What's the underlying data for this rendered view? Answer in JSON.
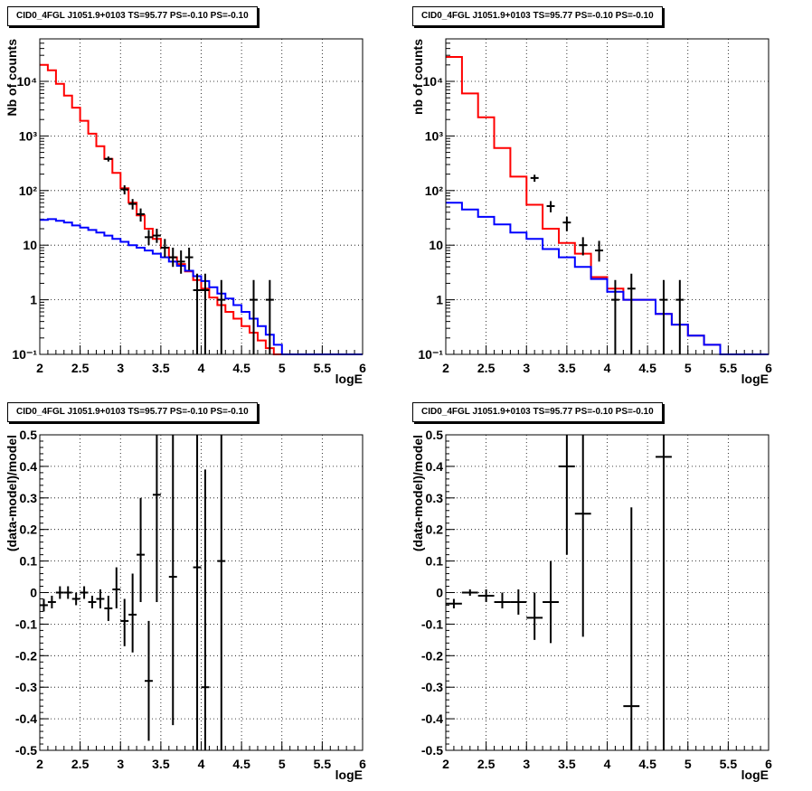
{
  "chart_data": [
    {
      "type": "line",
      "title": "CID0_4FGL J1051.9+0103 TS=95.77 PS=-0.10 PS=-0.10",
      "xlabel": "logE",
      "ylabel": "Nb of counts",
      "xlim": [
        2,
        6
      ],
      "ylim": [
        0.1,
        60000
      ],
      "log_y": true,
      "grid": true,
      "x_ticks": [
        2,
        2.5,
        3,
        3.5,
        4,
        4.5,
        5,
        5.5,
        6
      ],
      "x_tick_labels": [
        "2",
        "2.5",
        "3",
        "3.5",
        "4",
        "4.5",
        "5",
        "5.5",
        "6"
      ],
      "y_ticks": [
        0.1,
        1,
        10,
        100,
        1000,
        10000
      ],
      "y_tick_labels": [
        "10⁻¹",
        "1",
        "10",
        "10²",
        "10³",
        "10⁴"
      ],
      "bin_edges": [
        2.0,
        2.1,
        2.2,
        2.3,
        2.4,
        2.5,
        2.6,
        2.7,
        2.8,
        2.9,
        3.0,
        3.1,
        3.2,
        3.3,
        3.4,
        3.5,
        3.6,
        3.7,
        3.8,
        3.9,
        4.0,
        4.1,
        4.2,
        4.3,
        4.4,
        4.5,
        4.6,
        4.7,
        4.8,
        4.9,
        5.0,
        5.1,
        5.2,
        5.3,
        5.4,
        5.5,
        5.6,
        5.7,
        5.8,
        5.9,
        6.0
      ],
      "series": [
        {
          "color": "#ff0000",
          "style": "step",
          "values": [
            20000,
            16000,
            9000,
            5500,
            3300,
            1900,
            1100,
            650,
            380,
            210,
            110,
            60,
            35,
            20,
            13,
            9,
            6,
            4.5,
            3.3,
            2.3,
            1.6,
            1.1,
            0.8,
            0.6,
            0.45,
            0.33,
            0.25,
            0.18,
            0.13,
            0.1,
            0.1,
            0.1,
            0.1,
            0.1,
            0.1,
            0.1,
            0.1,
            0.1,
            0.1,
            0.1
          ]
        },
        {
          "color": "#0000ff",
          "style": "step",
          "values": [
            29,
            30,
            28,
            26,
            23,
            21,
            19,
            17,
            15,
            13,
            11.5,
            10,
            9,
            8,
            7,
            6,
            5,
            4.2,
            3.4,
            2.7,
            2.2,
            1.7,
            1.3,
            1.05,
            0.8,
            0.6,
            0.45,
            0.33,
            0.23,
            0.15,
            0.1,
            0.1,
            0.1,
            0.1,
            0.1,
            0.1,
            0.1,
            0.1,
            0.1,
            0.1
          ]
        }
      ],
      "points": [
        {
          "x": 2.85,
          "y": 380,
          "ylo": 340,
          "yhi": 420
        },
        {
          "x": 3.05,
          "y": 105,
          "ylo": 85,
          "yhi": 125
        },
        {
          "x": 3.15,
          "y": 57,
          "ylo": 45,
          "yhi": 70
        },
        {
          "x": 3.25,
          "y": 37,
          "ylo": 27,
          "yhi": 47
        },
        {
          "x": 3.35,
          "y": 14,
          "ylo": 10,
          "yhi": 19
        },
        {
          "x": 3.45,
          "y": 15,
          "ylo": 11,
          "yhi": 20
        },
        {
          "x": 3.55,
          "y": 9,
          "ylo": 6,
          "yhi": 13
        },
        {
          "x": 3.65,
          "y": 6,
          "ylo": 4,
          "yhi": 9
        },
        {
          "x": 3.75,
          "y": 5,
          "ylo": 3,
          "yhi": 8
        },
        {
          "x": 3.85,
          "y": 6,
          "ylo": 3.5,
          "yhi": 9
        },
        {
          "x": 3.95,
          "y": 1.5,
          "ylo": 0.1,
          "yhi": 3
        },
        {
          "x": 4.05,
          "y": 1.5,
          "ylo": 0.1,
          "yhi": 3
        },
        {
          "x": 4.25,
          "y": 1,
          "ylo": 0.1,
          "yhi": 2.3
        },
        {
          "x": 4.65,
          "y": 1,
          "ylo": 0.1,
          "yhi": 2.3
        },
        {
          "x": 4.85,
          "y": 1,
          "ylo": 0.1,
          "yhi": 2.3
        }
      ]
    },
    {
      "type": "line",
      "title": "CID0_4FGL J1051.9+0103 TS=95.77 PS=-0.10 PS=-0.10",
      "xlabel": "logE",
      "ylabel": "nb of counts",
      "xlim": [
        2,
        6
      ],
      "ylim": [
        0.1,
        60000
      ],
      "log_y": true,
      "grid": true,
      "x_ticks": [
        2,
        2.5,
        3,
        3.5,
        4,
        4.5,
        5,
        5.5,
        6
      ],
      "x_tick_labels": [
        "2",
        "2.5",
        "3",
        "3.5",
        "4",
        "4.5",
        "5",
        "5.5",
        "6"
      ],
      "y_ticks": [
        0.1,
        1,
        10,
        100,
        1000,
        10000
      ],
      "y_tick_labels": [
        "10⁻¹",
        "1",
        "10",
        "10²",
        "10³",
        "10⁴"
      ],
      "bin_edges": [
        2.0,
        2.2,
        2.4,
        2.6,
        2.8,
        3.0,
        3.2,
        3.4,
        3.6,
        3.8,
        4.0,
        4.2,
        4.4,
        4.6,
        4.8,
        5.0,
        5.2,
        5.4,
        5.6,
        5.8,
        6.0
      ],
      "series": [
        {
          "color": "#ff0000",
          "style": "step",
          "values": [
            28000,
            6000,
            2200,
            600,
            180,
            55,
            20,
            11,
            7,
            2.6,
            1.6,
            1.0,
            1.0,
            0.55,
            0.35,
            0.22,
            0.15,
            0.1,
            0.1,
            0.1
          ]
        },
        {
          "color": "#0000ff",
          "style": "step",
          "values": [
            60,
            45,
            33,
            24,
            17,
            13,
            8.5,
            6,
            4,
            2.4,
            1.4,
            1.0,
            1.0,
            0.55,
            0.35,
            0.22,
            0.15,
            0.1,
            0.1,
            0.1
          ]
        }
      ],
      "points": [
        {
          "x": 3.1,
          "y": 170,
          "ylo": 145,
          "yhi": 195
        },
        {
          "x": 3.3,
          "y": 52,
          "ylo": 40,
          "yhi": 64
        },
        {
          "x": 3.5,
          "y": 26,
          "ylo": 18,
          "yhi": 33
        },
        {
          "x": 3.7,
          "y": 10,
          "ylo": 6.5,
          "yhi": 14
        },
        {
          "x": 3.9,
          "y": 8,
          "ylo": 5,
          "yhi": 12
        },
        {
          "x": 4.1,
          "y": 1,
          "ylo": 0.1,
          "yhi": 2.3
        },
        {
          "x": 4.3,
          "y": 1.6,
          "ylo": 0.1,
          "yhi": 3
        },
        {
          "x": 4.7,
          "y": 1,
          "ylo": 0.1,
          "yhi": 2.3
        },
        {
          "x": 4.9,
          "y": 1,
          "ylo": 0.1,
          "yhi": 2.3
        }
      ]
    },
    {
      "type": "scatter",
      "title": "CID0_4FGL J1051.9+0103 TS=95.77 PS=-0.10 PS=-0.10",
      "xlabel": "logE",
      "ylabel": "(data-model)/model",
      "xlim": [
        2,
        6
      ],
      "ylim": [
        -0.5,
        0.5
      ],
      "grid": true,
      "x_ticks": [
        2,
        2.5,
        3,
        3.5,
        4,
        4.5,
        5,
        5.5,
        6
      ],
      "x_tick_labels": [
        "2",
        "2.5",
        "3",
        "3.5",
        "4",
        "4.5",
        "5",
        "5.5",
        "6"
      ],
      "y_ticks": [
        -0.5,
        -0.4,
        -0.3,
        -0.2,
        -0.1,
        0,
        0.1,
        0.2,
        0.3,
        0.4,
        0.5
      ],
      "y_tick_labels": [
        "-0.5",
        "-0.4",
        "-0.3",
        "-0.2",
        "-0.1",
        "0",
        "0.1",
        "0.2",
        "0.3",
        "0.4",
        "0.5"
      ],
      "points": [
        {
          "x": 2.05,
          "y": -0.04,
          "ylo": -0.06,
          "yhi": -0.02,
          "xerr": 0.05
        },
        {
          "x": 2.15,
          "y": -0.03,
          "ylo": -0.05,
          "yhi": -0.01,
          "xerr": 0.05
        },
        {
          "x": 2.25,
          "y": 0.0,
          "ylo": -0.02,
          "yhi": 0.02,
          "xerr": 0.05
        },
        {
          "x": 2.35,
          "y": 0.0,
          "ylo": -0.02,
          "yhi": 0.02,
          "xerr": 0.05
        },
        {
          "x": 2.45,
          "y": -0.02,
          "ylo": -0.04,
          "yhi": 0.0,
          "xerr": 0.05
        },
        {
          "x": 2.55,
          "y": 0.0,
          "ylo": -0.02,
          "yhi": 0.02,
          "xerr": 0.05
        },
        {
          "x": 2.65,
          "y": -0.03,
          "ylo": -0.05,
          "yhi": -0.01,
          "xerr": 0.05
        },
        {
          "x": 2.75,
          "y": -0.02,
          "ylo": -0.05,
          "yhi": 0.01,
          "xerr": 0.05
        },
        {
          "x": 2.85,
          "y": -0.05,
          "ylo": -0.09,
          "yhi": -0.01,
          "xerr": 0.05
        },
        {
          "x": 2.95,
          "y": 0.01,
          "ylo": -0.05,
          "yhi": 0.08,
          "xerr": 0.05
        },
        {
          "x": 3.05,
          "y": -0.09,
          "ylo": -0.17,
          "yhi": -0.02,
          "xerr": 0.05
        },
        {
          "x": 3.15,
          "y": -0.07,
          "ylo": -0.19,
          "yhi": 0.06,
          "xerr": 0.05
        },
        {
          "x": 3.25,
          "y": 0.12,
          "ylo": -0.03,
          "yhi": 0.3,
          "xerr": 0.05
        },
        {
          "x": 3.35,
          "y": -0.28,
          "ylo": -0.47,
          "yhi": -0.09,
          "xerr": 0.05
        },
        {
          "x": 3.45,
          "y": 0.31,
          "ylo": -0.03,
          "yhi": 0.5,
          "xerr": 0.05
        },
        {
          "x": 3.65,
          "y": 0.05,
          "ylo": -0.42,
          "yhi": 0.5,
          "xerr": 0.05
        },
        {
          "x": 3.95,
          "y": 0.08,
          "ylo": -0.5,
          "yhi": 0.5,
          "xerr": 0.05
        },
        {
          "x": 4.05,
          "y": -0.3,
          "ylo": -0.5,
          "yhi": 0.39,
          "xerr": 0.05
        },
        {
          "x": 4.25,
          "y": 0.1,
          "ylo": -0.5,
          "yhi": 0.5,
          "xerr": 0.05
        }
      ]
    },
    {
      "type": "scatter",
      "title": "CID0_4FGL J1051.9+0103 TS=95.77 PS=-0.10 PS=-0.10",
      "xlabel": "logE",
      "ylabel": "(data-model)/model",
      "xlim": [
        2,
        6
      ],
      "ylim": [
        -0.5,
        0.5
      ],
      "grid": true,
      "x_ticks": [
        2,
        2.5,
        3,
        3.5,
        4,
        4.5,
        5,
        5.5,
        6
      ],
      "x_tick_labels": [
        "2",
        "2.5",
        "3",
        "3.5",
        "4",
        "4.5",
        "5",
        "5.5",
        "6"
      ],
      "y_ticks": [
        -0.5,
        -0.4,
        -0.3,
        -0.2,
        -0.1,
        0,
        0.1,
        0.2,
        0.3,
        0.4,
        0.5
      ],
      "y_tick_labels": [
        "-0.5",
        "-0.4",
        "-0.3",
        "-0.2",
        "-0.1",
        "0",
        "0.1",
        "0.2",
        "0.3",
        "0.4",
        "0.5"
      ],
      "points": [
        {
          "x": 2.1,
          "y": -0.035,
          "ylo": -0.05,
          "yhi": -0.02,
          "xerr": 0.1
        },
        {
          "x": 2.3,
          "y": 0.0,
          "ylo": -0.01,
          "yhi": 0.01,
          "xerr": 0.1
        },
        {
          "x": 2.5,
          "y": -0.01,
          "ylo": -0.03,
          "yhi": 0.01,
          "xerr": 0.1
        },
        {
          "x": 2.7,
          "y": -0.03,
          "ylo": -0.05,
          "yhi": 0.0,
          "xerr": 0.1
        },
        {
          "x": 2.9,
          "y": -0.03,
          "ylo": -0.07,
          "yhi": 0.01,
          "xerr": 0.1
        },
        {
          "x": 3.1,
          "y": -0.08,
          "ylo": -0.15,
          "yhi": -0.0,
          "xerr": 0.1
        },
        {
          "x": 3.3,
          "y": -0.03,
          "ylo": -0.16,
          "yhi": 0.1,
          "xerr": 0.1
        },
        {
          "x": 3.5,
          "y": 0.4,
          "ylo": 0.12,
          "yhi": 0.5,
          "xerr": 0.1
        },
        {
          "x": 3.7,
          "y": 0.25,
          "ylo": -0.14,
          "yhi": 0.5,
          "xerr": 0.1
        },
        {
          "x": 4.3,
          "y": -0.36,
          "ylo": -0.5,
          "yhi": 0.27,
          "xerr": 0.1
        },
        {
          "x": 4.7,
          "y": 0.43,
          "ylo": -0.5,
          "yhi": 0.5,
          "xerr": 0.1
        }
      ]
    }
  ]
}
